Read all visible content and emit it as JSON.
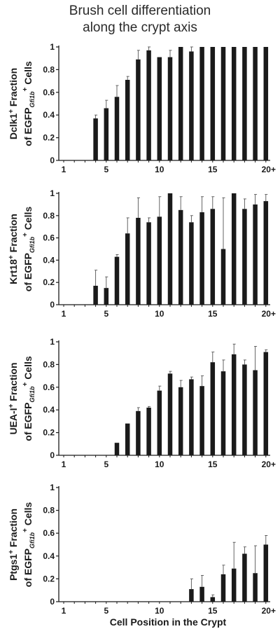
{
  "title_line1": "Brush cell differentiation",
  "title_line2": "along the crypt axis",
  "xlabel": "Cell Position in the Crypt",
  "colors": {
    "bar": "#1a1a1a",
    "axis": "#1a1a1a"
  },
  "chart_data": [
    {
      "type": "bar",
      "marker_main": "Dclk1",
      "ylabel_sup1": "+",
      "ylabel_rest1": " Fraction",
      "ylabel_pre2": "of EGFP",
      "ylabel_sub2": "Gfi1b",
      "ylabel_sup2": "+",
      "ylabel_post2": " Cells",
      "x": [
        1,
        2,
        3,
        4,
        5,
        6,
        7,
        8,
        9,
        10,
        11,
        12,
        13,
        14,
        15,
        16,
        17,
        18,
        19,
        20
      ],
      "values": [
        0,
        0,
        0,
        0.37,
        0.46,
        0.56,
        0.71,
        0.89,
        0.97,
        0.91,
        0.91,
        1,
        0.96,
        1,
        1,
        1,
        1,
        1,
        1,
        1
      ],
      "errors": [
        0,
        0,
        0,
        0.03,
        0.07,
        0.1,
        0.03,
        0.08,
        0.03,
        0,
        0.06,
        0,
        0.04,
        0,
        0,
        0,
        0,
        0,
        0,
        0
      ],
      "xticks": [
        "1",
        "5",
        "10",
        "15",
        "20+"
      ],
      "yticks": [
        "0",
        "0.2",
        "0.4",
        "0.6",
        "0.8",
        "1"
      ],
      "ylim": [
        0,
        1
      ]
    },
    {
      "type": "bar",
      "marker_main": "Krt18",
      "ylabel_sup1": "+",
      "ylabel_rest1": " Fraction",
      "ylabel_pre2": "of EGFP",
      "ylabel_sub2": "Gfi1b",
      "ylabel_sup2": "+",
      "ylabel_post2": " Cells",
      "x": [
        1,
        2,
        3,
        4,
        5,
        6,
        7,
        8,
        9,
        10,
        11,
        12,
        13,
        14,
        15,
        16,
        17,
        18,
        19,
        20
      ],
      "values": [
        0,
        0,
        0,
        0.17,
        0.15,
        0.43,
        0.64,
        0.78,
        0.74,
        0.79,
        1,
        0.85,
        0.74,
        0.83,
        0.86,
        0.5,
        1,
        0.86,
        0.9,
        0.93
      ],
      "errors": [
        0,
        0,
        0,
        0.14,
        0.1,
        0.02,
        0.14,
        0.18,
        0.04,
        0.18,
        0,
        0.12,
        0.06,
        0.14,
        0.11,
        0.46,
        0,
        0.09,
        0.09,
        0.06
      ],
      "xticks": [
        "1",
        "5",
        "10",
        "15",
        "20+"
      ],
      "yticks": [
        "0",
        "0.2",
        "0.4",
        "0.6",
        "0.8",
        "1"
      ],
      "ylim": [
        0,
        1
      ]
    },
    {
      "type": "bar",
      "marker_main": "UEA-I",
      "ylabel_sup1": "+",
      "ylabel_rest1": " Fraction",
      "ylabel_pre2": "of EGFP",
      "ylabel_sub2": "Gfi1b",
      "ylabel_sup2": "+",
      "ylabel_post2": " Cells",
      "x": [
        1,
        2,
        3,
        4,
        5,
        6,
        7,
        8,
        9,
        10,
        11,
        12,
        13,
        14,
        15,
        16,
        17,
        18,
        19,
        20
      ],
      "values": [
        0,
        0,
        0,
        0,
        0,
        0.11,
        0.28,
        0.39,
        0.42,
        0.57,
        0.72,
        0.6,
        0.67,
        0.61,
        0.82,
        0.74,
        0.89,
        0.8,
        0.75,
        0.91
      ],
      "errors": [
        0,
        0,
        0,
        0,
        0,
        0,
        0,
        0.03,
        0.01,
        0.04,
        0.02,
        0.06,
        0.02,
        0.09,
        0.09,
        0.1,
        0.09,
        0.04,
        0.21,
        0.02
      ],
      "xticks": [
        "1",
        "5",
        "10",
        "15",
        "20+"
      ],
      "yticks": [
        "0",
        "0.2",
        "0.4",
        "0.6",
        "0.8",
        "1"
      ],
      "ylim": [
        0,
        1
      ]
    },
    {
      "type": "bar",
      "marker_main": "Ptgs1",
      "ylabel_sup1": "+",
      "ylabel_rest1": " Fraction",
      "ylabel_pre2": "of EGFP",
      "ylabel_sub2": "Gfi1b",
      "ylabel_sup2": "+",
      "ylabel_post2": " Cells",
      "x": [
        1,
        2,
        3,
        4,
        5,
        6,
        7,
        8,
        9,
        10,
        11,
        12,
        13,
        14,
        15,
        16,
        17,
        18,
        19,
        20
      ],
      "values": [
        0,
        0,
        0,
        0,
        0,
        0,
        0,
        0,
        0,
        0,
        0,
        0,
        0.11,
        0.13,
        0.04,
        0.24,
        0.29,
        0.42,
        0.25,
        0.5
      ],
      "errors": [
        0,
        0,
        0,
        0,
        0,
        0,
        0,
        0,
        0,
        0,
        0,
        0,
        0.09,
        0.1,
        0.02,
        0.08,
        0.23,
        0.06,
        0.24,
        0.08
      ],
      "xticks": [
        "1",
        "5",
        "10",
        "15",
        "20+"
      ],
      "yticks": [
        "0",
        "0.2",
        "0.4",
        "0.6",
        "0.8",
        "1"
      ],
      "ylim": [
        0,
        1
      ]
    }
  ]
}
